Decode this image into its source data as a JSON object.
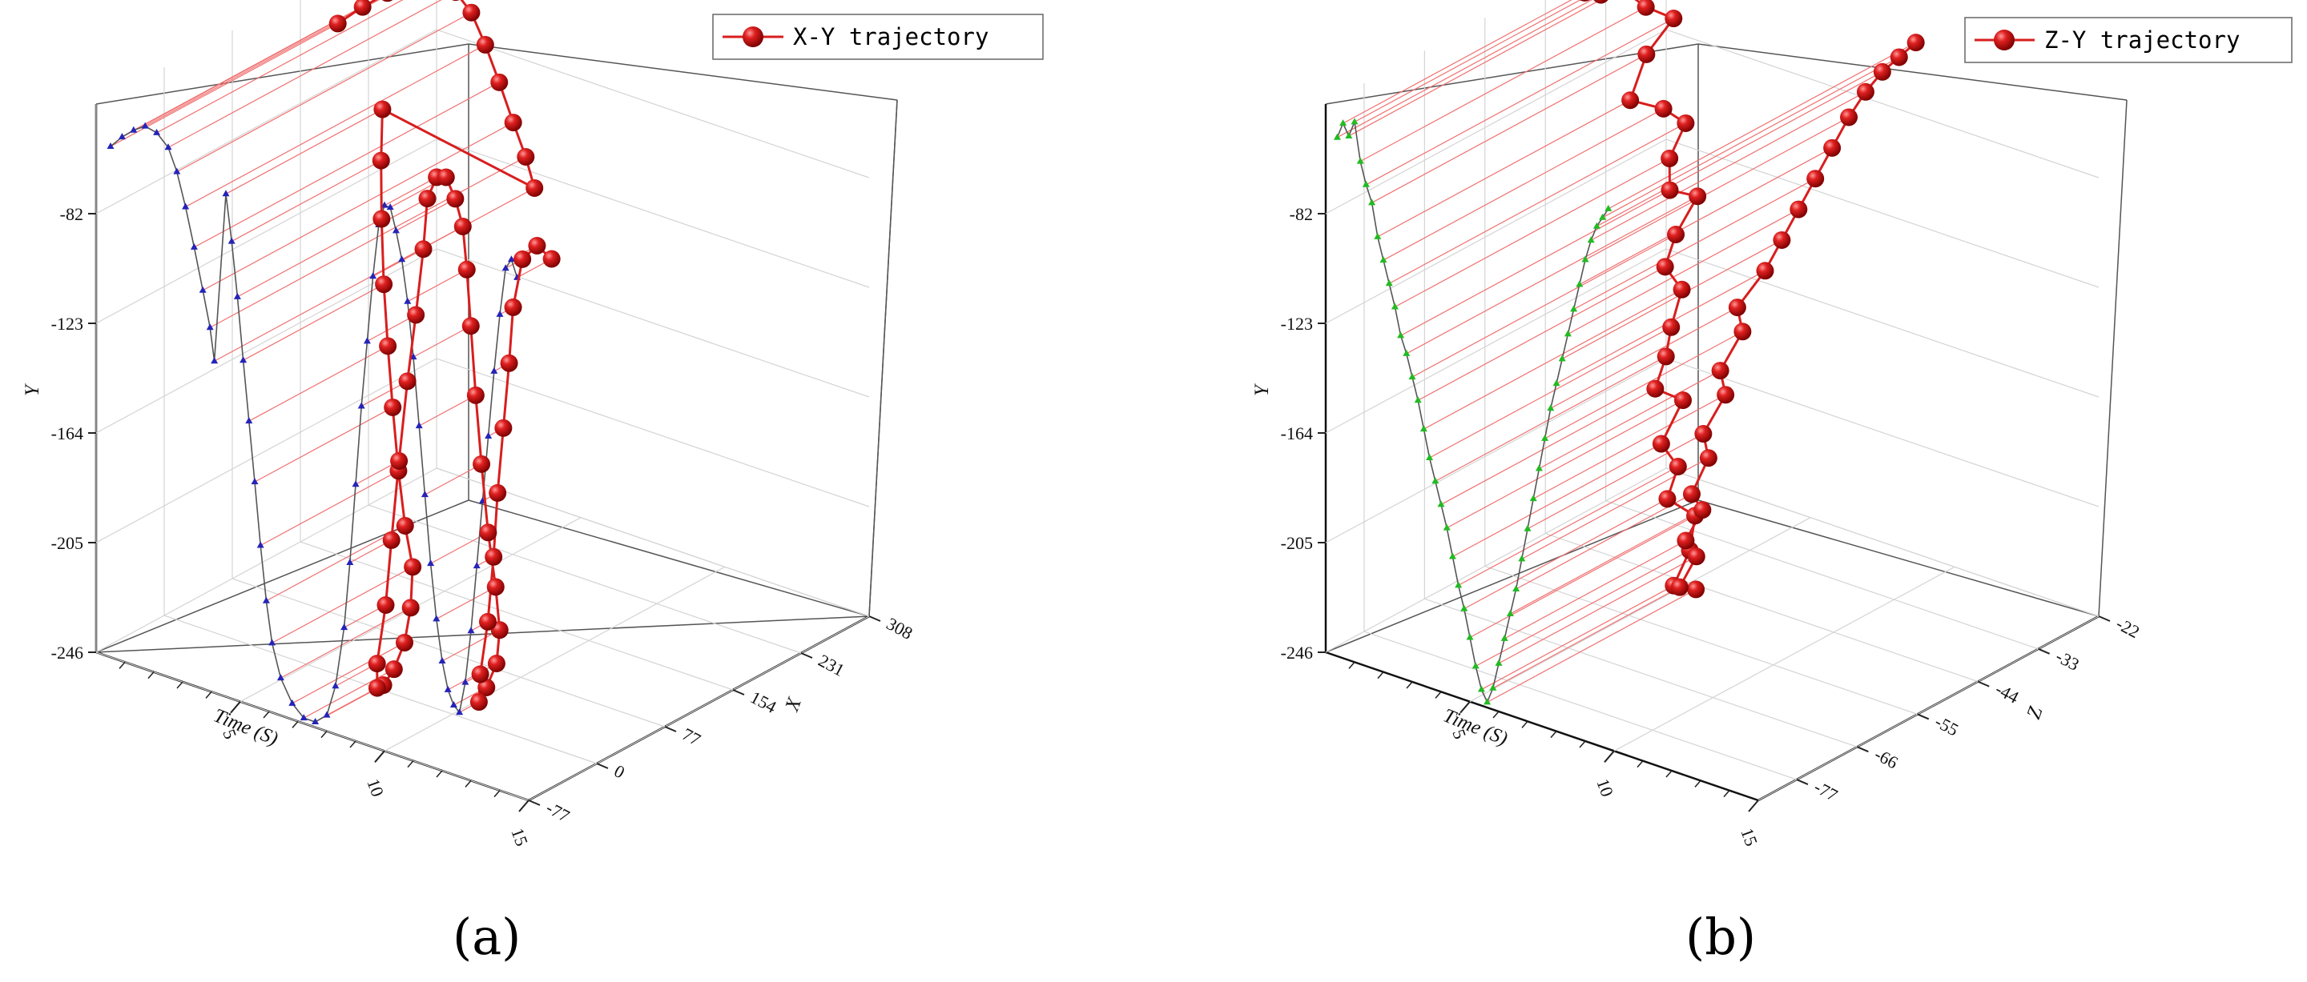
{
  "chart_data": [
    {
      "type": "scatter",
      "subtype": "3d-line-with-projection",
      "caption": "(a)",
      "legend": "X-Y trajectory",
      "legend_position": "top-right",
      "ylabel": "Y",
      "xlabel": "Time (S)",
      "zlabel": "X",
      "yticks": [
        "-246",
        "-205",
        "-164",
        "-123",
        "-82"
      ],
      "time_ticks": [
        "5",
        "10",
        "15"
      ],
      "depth_ticks": [
        "-77",
        "0",
        "77",
        "154",
        "231",
        "308"
      ],
      "depth_range": [
        -77,
        308
      ],
      "y_range": [
        -246,
        -41
      ],
      "time_range": [
        0,
        15
      ],
      "series_color": "#d81e1e",
      "projection_color": "#2424b8",
      "grid": true,
      "points": [
        {
          "t": 0.5,
          "x": 180,
          "y": -55
        },
        {
          "t": 0.9,
          "x": 195,
          "y": -50
        },
        {
          "t": 1.3,
          "x": 210,
          "y": -46
        },
        {
          "t": 1.7,
          "x": 225,
          "y": -43
        },
        {
          "t": 2.1,
          "x": 238,
          "y": -44
        },
        {
          "t": 2.5,
          "x": 248,
          "y": -48
        },
        {
          "t": 2.8,
          "x": 256,
          "y": -56
        },
        {
          "t": 3.1,
          "x": 262,
          "y": -68
        },
        {
          "t": 3.4,
          "x": 268,
          "y": -82
        },
        {
          "t": 3.7,
          "x": 274,
          "y": -97
        },
        {
          "t": 3.95,
          "x": 280,
          "y": -110
        },
        {
          "t": 4.1,
          "x": 285,
          "y": -122
        },
        {
          "t": 4.5,
          "x": 100,
          "y": -58
        },
        {
          "t": 4.7,
          "x": 92,
          "y": -75
        },
        {
          "t": 4.9,
          "x": 86,
          "y": -95
        },
        {
          "t": 5.1,
          "x": 82,
          "y": -118
        },
        {
          "t": 5.3,
          "x": 80,
          "y": -140
        },
        {
          "t": 5.5,
          "x": 79,
          "y": -162
        },
        {
          "t": 5.7,
          "x": 79,
          "y": -185
        },
        {
          "t": 5.9,
          "x": 80,
          "y": -205
        },
        {
          "t": 6.1,
          "x": 82,
          "y": -220
        },
        {
          "t": 6.4,
          "x": 70,
          "y": -232
        },
        {
          "t": 6.8,
          "x": 50,
          "y": -240
        },
        {
          "t": 7.2,
          "x": 25,
          "y": -244
        },
        {
          "t": 7.6,
          "x": 0,
          "y": -244
        },
        {
          "t": 8.0,
          "x": -20,
          "y": -240
        },
        {
          "t": 8.3,
          "x": -30,
          "y": -228
        },
        {
          "t": 8.6,
          "x": -30,
          "y": -205
        },
        {
          "t": 8.8,
          "x": -30,
          "y": -180
        },
        {
          "t": 9.0,
          "x": -28,
          "y": -150
        },
        {
          "t": 9.2,
          "x": -25,
          "y": -120
        },
        {
          "t": 9.4,
          "x": -22,
          "y": -95
        },
        {
          "t": 9.6,
          "x": -20,
          "y": -70
        },
        {
          "t": 9.8,
          "x": -22,
          "y": -50
        },
        {
          "t": 10.0,
          "x": -18,
          "y": -42
        },
        {
          "t": 10.2,
          "x": -14,
          "y": -42
        },
        {
          "t": 10.4,
          "x": -10,
          "y": -50
        },
        {
          "t": 10.6,
          "x": -8,
          "y": -60
        },
        {
          "t": 10.8,
          "x": -10,
          "y": -75
        },
        {
          "t": 11.0,
          "x": -12,
          "y": -95
        },
        {
          "t": 11.2,
          "x": -13,
          "y": -120
        },
        {
          "t": 11.4,
          "x": -13,
          "y": -145
        },
        {
          "t": 11.6,
          "x": -12,
          "y": -170
        },
        {
          "t": 11.8,
          "x": -10,
          "y": -190
        },
        {
          "t": 12.0,
          "x": -12,
          "y": -205
        },
        {
          "t": 12.2,
          "x": -22,
          "y": -215
        },
        {
          "t": 12.4,
          "x": -40,
          "y": -220
        },
        {
          "t": 12.6,
          "x": -55,
          "y": -222
        },
        {
          "t": 12.8,
          "x": -60,
          "y": -210
        },
        {
          "t": 13.0,
          "x": -58,
          "y": -190
        },
        {
          "t": 13.2,
          "x": -58,
          "y": -165
        },
        {
          "t": 13.4,
          "x": -60,
          "y": -140
        },
        {
          "t": 13.6,
          "x": -60,
          "y": -115
        },
        {
          "t": 13.8,
          "x": -60,
          "y": -90
        },
        {
          "t": 14.0,
          "x": -62,
          "y": -68
        },
        {
          "t": 14.2,
          "x": -58,
          "y": -50
        },
        {
          "t": 14.4,
          "x": -48,
          "y": -46
        },
        {
          "t": 14.6,
          "x": -38,
          "y": -52
        }
      ]
    },
    {
      "type": "scatter",
      "subtype": "3d-line-with-projection",
      "caption": "(b)",
      "legend": "Z-Y trajectory",
      "legend_position": "top-right",
      "ylabel": "Y",
      "xlabel": "Time (S)",
      "zlabel": "Z",
      "yticks": [
        "-246",
        "-205",
        "-164",
        "-123",
        "-82"
      ],
      "time_ticks": [
        "5",
        "10",
        "15"
      ],
      "depth_ticks": [
        "-77",
        "-66",
        "-55",
        "-44",
        "-33",
        "-22"
      ],
      "depth_range": [
        -84,
        -22
      ],
      "y_range": [
        -246,
        -41
      ],
      "time_range": [
        0,
        15
      ],
      "series_color": "#d81e1e",
      "projection_color": "#22bb22",
      "grid": true,
      "points": [
        {
          "t": 0.4,
          "z": -36,
          "y": -52
        },
        {
          "t": 0.6,
          "z": -40,
          "y": -46
        },
        {
          "t": 0.8,
          "z": -30,
          "y": -50
        },
        {
          "t": 1.0,
          "z": -37,
          "y": -44
        },
        {
          "t": 1.2,
          "z": -32,
          "y": -58
        },
        {
          "t": 1.4,
          "z": -28,
          "y": -66
        },
        {
          "t": 1.6,
          "z": -34,
          "y": -72
        },
        {
          "t": 1.8,
          "z": -38,
          "y": -84
        },
        {
          "t": 2.0,
          "z": -33,
          "y": -92
        },
        {
          "t": 2.2,
          "z": -30,
          "y": -100
        },
        {
          "t": 2.4,
          "z": -34,
          "y": -108
        },
        {
          "t": 2.6,
          "z": -35,
          "y": -118
        },
        {
          "t": 2.8,
          "z": -31,
          "y": -124
        },
        {
          "t": 3.0,
          "z": -36,
          "y": -132
        },
        {
          "t": 3.2,
          "z": -39,
          "y": -140
        },
        {
          "t": 3.4,
          "z": -37,
          "y": -150
        },
        {
          "t": 3.6,
          "z": -40,
          "y": -160
        },
        {
          "t": 3.8,
          "z": -42,
          "y": -168
        },
        {
          "t": 4.0,
          "z": -45,
          "y": -176
        },
        {
          "t": 4.2,
          "z": -41,
          "y": -184
        },
        {
          "t": 4.4,
          "z": -46,
          "y": -194
        },
        {
          "t": 4.6,
          "z": -44,
          "y": -204
        },
        {
          "t": 4.8,
          "z": -47,
          "y": -212
        },
        {
          "t": 5.0,
          "z": -43,
          "y": -222
        },
        {
          "t": 5.2,
          "z": -45,
          "y": -232
        },
        {
          "t": 5.4,
          "z": -49,
          "y": -240
        },
        {
          "t": 5.6,
          "z": -46,
          "y": -244
        },
        {
          "t": 5.8,
          "z": -50,
          "y": -238
        },
        {
          "t": 6.0,
          "z": -48,
          "y": -228
        },
        {
          "t": 6.2,
          "z": -51,
          "y": -218
        },
        {
          "t": 6.4,
          "z": -49,
          "y": -208
        },
        {
          "t": 6.6,
          "z": -52,
          "y": -198
        },
        {
          "t": 6.8,
          "z": -50,
          "y": -186
        },
        {
          "t": 7.0,
          "z": -52,
          "y": -174
        },
        {
          "t": 7.2,
          "z": -49,
          "y": -162
        },
        {
          "t": 7.4,
          "z": -51,
          "y": -150
        },
        {
          "t": 7.6,
          "z": -48,
          "y": -138
        },
        {
          "t": 7.8,
          "z": -50,
          "y": -126
        },
        {
          "t": 8.0,
          "z": -46,
          "y": -116
        },
        {
          "t": 8.2,
          "z": -44,
          "y": -106
        },
        {
          "t": 8.4,
          "z": -42,
          "y": -96
        },
        {
          "t": 8.6,
          "z": -40,
          "y": -86
        },
        {
          "t": 8.8,
          "z": -38,
          "y": -76
        },
        {
          "t": 9.0,
          "z": -36,
          "y": -66
        },
        {
          "t": 9.2,
          "z": -34,
          "y": -58
        },
        {
          "t": 9.4,
          "z": -32,
          "y": -52
        },
        {
          "t": 9.6,
          "z": -30,
          "y": -48
        },
        {
          "t": 9.8,
          "z": -28,
          "y": -44
        }
      ]
    }
  ]
}
